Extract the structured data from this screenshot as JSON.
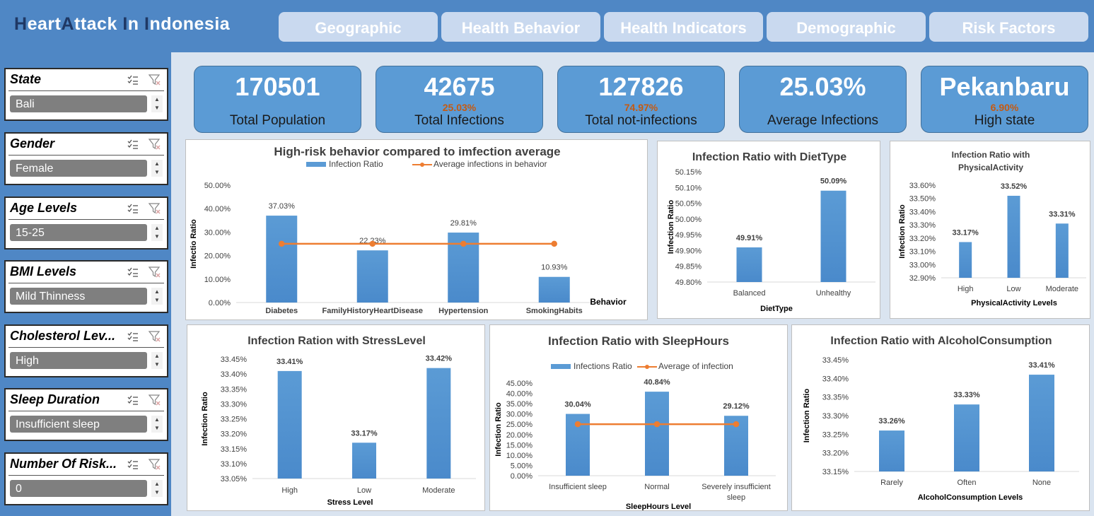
{
  "header": {
    "title_parts": [
      "H",
      "eart",
      "A",
      "ttack ",
      "I",
      "n ",
      "I",
      "ndonesia"
    ],
    "nav": [
      "Geographic",
      "Health Behavior",
      "Health Indicators",
      "Demographic",
      "Risk Factors"
    ]
  },
  "slicers": [
    {
      "label": "State",
      "selected": "Bali"
    },
    {
      "label": "Gender",
      "selected": "Female"
    },
    {
      "label": "Age Levels",
      "selected": "15-25"
    },
    {
      "label": "BMI Levels",
      "selected": "Mild Thinness"
    },
    {
      "label": "Cholesterol Lev...",
      "selected": "High"
    },
    {
      "label": "Sleep Duration",
      "selected": "Insufficient sleep"
    },
    {
      "label": "Number Of Risk...",
      "selected": "0"
    }
  ],
  "kpis": [
    {
      "value": "170501",
      "pct": "",
      "label": "Total Population"
    },
    {
      "value": "42675",
      "pct": "25.03%",
      "label": "Total Infections"
    },
    {
      "value": "127826",
      "pct": "74.97%",
      "label": "Total not-infections"
    },
    {
      "value": "25.03%",
      "pct": "",
      "label": "Average Infections"
    },
    {
      "value": "Pekanbaru",
      "pct": "6.90%",
      "label": "High state"
    }
  ],
  "colors": {
    "bar": "#5b9bd5",
    "line": "#ed7d31",
    "header": "#4f87c5",
    "accent": "#c55a11"
  },
  "chart_data": [
    {
      "id": "behavior",
      "type": "bar",
      "title": "High-risk behavior compared to imfection average",
      "legend": [
        "Infection Ratio",
        "Average infections in behavior"
      ],
      "xlabel": "Behavior",
      "ylabel": "Infectio Ratio",
      "categories": [
        "Diabetes",
        "FamilyHistoryHeartDisease",
        "Hypertension",
        "SmokingHabits"
      ],
      "values": [
        37.03,
        22.23,
        29.81,
        10.93
      ],
      "value_labels": [
        "37.03%",
        "22.23%",
        "29.81%",
        "10.93%"
      ],
      "line_values": [
        25.03,
        25.03,
        25.03,
        25.03
      ],
      "yticks": [
        "0.00%",
        "10.00%",
        "20.00%",
        "30.00%",
        "40.00%",
        "50.00%"
      ],
      "ylim": [
        0,
        50
      ]
    },
    {
      "id": "diet",
      "type": "bar",
      "title": "Infection Ratio with DietType",
      "xlabel": "DietType",
      "ylabel": "Infection Ratio",
      "categories": [
        "Balanced",
        "Unhealthy"
      ],
      "values": [
        49.91,
        50.09
      ],
      "value_labels": [
        "49.91%",
        "50.09%"
      ],
      "yticks": [
        "49.80%",
        "49.85%",
        "49.90%",
        "49.95%",
        "50.00%",
        "50.05%",
        "50.10%",
        "50.15%"
      ],
      "ylim": [
        49.8,
        50.15
      ]
    },
    {
      "id": "physical",
      "type": "bar",
      "title": "Infection Ratio with",
      "title2": "PhysicalActivity",
      "xlabel": "PhysicalActivity Levels",
      "ylabel": "Infection Ratio",
      "categories": [
        "High",
        "Low",
        "Moderate"
      ],
      "values": [
        33.17,
        33.52,
        33.31
      ],
      "value_labels": [
        "33.17%",
        "33.52%",
        "33.31%"
      ],
      "yticks": [
        "32.90%",
        "33.00%",
        "33.10%",
        "33.20%",
        "33.30%",
        "33.40%",
        "33.50%",
        "33.60%"
      ],
      "ylim": [
        32.9,
        33.6
      ]
    },
    {
      "id": "stress",
      "type": "bar",
      "title": "Infection Ration with StressLevel",
      "xlabel": "Stress Level",
      "ylabel": "Infection Ratio",
      "categories": [
        "High",
        "Low",
        "Moderate"
      ],
      "values": [
        33.41,
        33.17,
        33.42
      ],
      "value_labels": [
        "33.41%",
        "33.17%",
        "33.42%"
      ],
      "yticks": [
        "33.05%",
        "33.10%",
        "33.15%",
        "33.20%",
        "33.25%",
        "33.30%",
        "33.35%",
        "33.40%",
        "33.45%"
      ],
      "ylim": [
        33.05,
        33.45
      ]
    },
    {
      "id": "sleep",
      "type": "bar",
      "title": "Infection Ratio with SleepHours",
      "legend": [
        "Infections Ratio",
        "Average of infection"
      ],
      "xlabel": "SleepHours Level",
      "ylabel": "Infection Ratio",
      "categories": [
        "Insufficient sleep",
        "Normal",
        "Severely insufficient|sleep"
      ],
      "values": [
        30.04,
        40.84,
        29.12
      ],
      "value_labels": [
        "30.04%",
        "40.84%",
        "29.12%"
      ],
      "line_values": [
        25.03,
        25.03,
        25.03
      ],
      "yticks": [
        "0.00%",
        "5.00%",
        "10.00%",
        "15.00%",
        "20.00%",
        "25.00%",
        "30.00%",
        "35.00%",
        "40.00%",
        "45.00%"
      ],
      "ylim": [
        0,
        45
      ]
    },
    {
      "id": "alcohol",
      "type": "bar",
      "title": "Infection Ratio with AlcoholConsumption",
      "xlabel": "AlcoholConsumption Levels",
      "ylabel": "Infection Ratio",
      "categories": [
        "Rarely",
        "Often",
        "None"
      ],
      "values": [
        33.26,
        33.33,
        33.41
      ],
      "value_labels": [
        "33.26%",
        "33.33%",
        "33.41%"
      ],
      "yticks": [
        "33.15%",
        "33.20%",
        "33.25%",
        "33.30%",
        "33.35%",
        "33.40%",
        "33.45%"
      ],
      "ylim": [
        33.15,
        33.45
      ]
    }
  ]
}
